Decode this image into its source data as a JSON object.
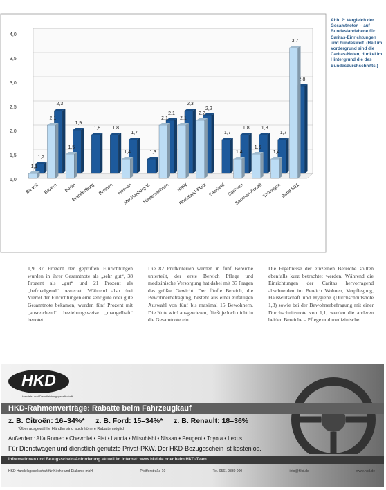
{
  "chart_data": {
    "type": "bar",
    "caption": "Abb. 2: Vergleich der Gesamtnoten – auf Bundeslandebene für Caritas-Einrichtungen und bundesweit. (Hell im Vordergrund sind die Caritas-Noten, dunkel im Hintergrund die des Bundesdurchschnitts.)",
    "categories": [
      "Ba-Wü",
      "Bayern",
      "Berlin",
      "Brandenburg",
      "Bremen",
      "Hessen",
      "Mecklenburg-V.",
      "Niedersachsen",
      "NRW",
      "Rheinland-Pfalz",
      "Saarland",
      "Sachsen",
      "Sachsen-Anhalt",
      "Thüringen",
      "Bund 5/11"
    ],
    "series": [
      {
        "color": "#1d5a9c",
        "values": [
          1.2,
          2.3,
          1.9,
          1.8,
          1.8,
          1.7,
          1.3,
          2.1,
          2.3,
          2.2,
          1.7,
          1.8,
          1.8,
          1.7,
          2.8
        ],
        "value_labels": [
          "1,2",
          "2,3",
          "1,9",
          "1,8",
          "1,8",
          "1,7",
          "1,3",
          "2,1",
          "2,3",
          "2,2",
          "1,7",
          "1,8",
          "1,8",
          "1,7",
          "2,8"
        ]
      },
      {
        "color": "#bcdcf4",
        "values": [
          1.1,
          2.1,
          1.5,
          null,
          null,
          1.4,
          null,
          2.1,
          2.1,
          2.2,
          null,
          1.4,
          1.5,
          1.4,
          3.7
        ],
        "value_labels": [
          "1,1",
          "2,1",
          "1,5",
          null,
          null,
          "1,4",
          null,
          "2,1",
          "2,1",
          "2,2",
          null,
          "1,4",
          "1,5",
          "1,4",
          "3,7"
        ]
      }
    ],
    "ylim": [
      1.0,
      4.0
    ],
    "yticks": [
      {
        "value": 1.0,
        "label": "1,0"
      },
      {
        "value": 1.5,
        "label": "1,5"
      },
      {
        "value": 2.0,
        "label": "2,0"
      },
      {
        "value": 2.5,
        "label": "2,5"
      },
      {
        "value": 3.0,
        "label": "3,0"
      },
      {
        "value": 3.5,
        "label": "3,5"
      },
      {
        "value": 4.0,
        "label": "4,0"
      }
    ],
    "grid": true
  },
  "article": {
    "columns": [
      "1,9 37 Prozent der geprüften Einrichtungen wurden in ihrer Gesamtnote als „sehr gut“, 38 Prozent als „gut“ und 21 Prozent als „befriedigend“ bewertet. Während also drei Viertel der Einrichtungen eine sehr gute oder gute Gesamtnote bekamen, wurden fünf Prozent mit „ausreichend“ beziehungsweise „mangelhaft“ benotet.",
      "Die 82 Prüfkriterien werden in fünf Bereiche unterteilt, der erste Bereich Pflege und medizinische Versorgung hat dabei mit 35 Fragen das größte Gewicht. Der fünfte Bereich, die Bewohnerbefragung, besteht aus einer zufälligen Auswahl von fünf bis maximal 15 Bewohnern. Die Note wird ausgewiesen, fließt jedoch nicht in die Gesamtnote ein.",
      "Die Ergebnisse der einzelnen Bereiche sollten ebenfalls kurz betrachtet werden. Während die Einrichtungen der Caritas hervorragend abschneiden im Bereich Wohnen, Verpflegung, Hauswirtschaft und Hygiene (Durchschnittsnote 1,3) sowie bei der Bewohnerbefragung mit einer Durchschnittsnote von 1,1, werden die anderen beiden Bereiche – Pflege und medizinische"
    ]
  },
  "ad": {
    "logo": "HKD",
    "logo_sub": "Handels- und Dienstleistungsgesellschaft",
    "headline": "HKD-Rahmenverträge: Rabatte beim Fahrzeugkauf",
    "offers": [
      "z. B. Citroën: 16–34%*",
      "z. B. Ford: 15–34%*",
      "z. B. Renault: 18–36%"
    ],
    "footnote": "*Über ausgewählte Händler sind auch höhere Rabatte möglich",
    "brands": "Außerdem: Alfa Romeo • Chevrolet • Fiat • Lancia • Mitsubishi • Nissan • Peugeot • Toyota • Lexus",
    "usage": "Für Dienstwagen und dienstlich genutzte Privat-PKW. Der HKD-Bezugsschein ist kostenlos.",
    "info": "Informationen und Bezugsschein-Anforderung aktuell im Internet: www.hkd.de oder beim HKD-Team",
    "contacts": [
      "HKD Handelsgesellschaft für Kirche und Diakonie mbH",
      "Pfeifferstraße 10",
      "Tel. 0561 9330 000",
      "info@hkd.de",
      "www.hkd.de"
    ]
  }
}
